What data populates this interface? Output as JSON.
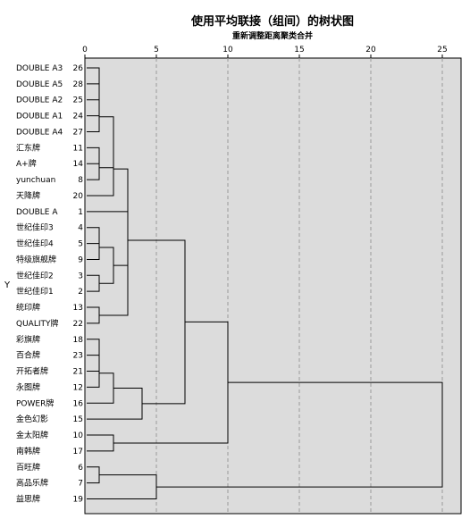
{
  "chart_data": {
    "type": "dendrogram",
    "title": "使用平均联接（组间）的树状图",
    "subtitle": "重新调整距离聚类合并",
    "ylabel": "Y",
    "x_ticks": [
      0,
      5,
      10,
      15,
      20,
      25
    ],
    "xlim": [
      0,
      25
    ],
    "grid": "dashed vertical at ticks",
    "leaves": [
      {
        "label": "DOUBLE A3",
        "id": "26"
      },
      {
        "label": "DOUBLE A5",
        "id": "28"
      },
      {
        "label": "DOUBLE A2",
        "id": "25"
      },
      {
        "label": "DOUBLE A1",
        "id": "24"
      },
      {
        "label": "DOUBLE A4",
        "id": "27"
      },
      {
        "label": "汇东牌",
        "id": "11"
      },
      {
        "label": "A+牌",
        "id": "14"
      },
      {
        "label": "yunchuan",
        "id": "8"
      },
      {
        "label": "天降牌",
        "id": "20"
      },
      {
        "label": "DOUBLE A",
        "id": "1"
      },
      {
        "label": "世纪佳印3",
        "id": "4"
      },
      {
        "label": "世纪佳印4",
        "id": "5"
      },
      {
        "label": "特级旗舰牌",
        "id": "9"
      },
      {
        "label": "世纪佳印2",
        "id": "3"
      },
      {
        "label": "世纪佳印1",
        "id": "2"
      },
      {
        "label": "统印牌",
        "id": "13"
      },
      {
        "label": "QUALITY牌",
        "id": "22"
      },
      {
        "label": "彩旗牌",
        "id": "18"
      },
      {
        "label": "百合牌",
        "id": "23"
      },
      {
        "label": "开拓者牌",
        "id": "21"
      },
      {
        "label": "永图牌",
        "id": "12"
      },
      {
        "label": "POWER牌",
        "id": "16"
      },
      {
        "label": "金色幻影",
        "id": "15"
      },
      {
        "label": "金太阳牌",
        "id": "10"
      },
      {
        "label": "南韩牌",
        "id": "17"
      },
      {
        "label": "百旺牌",
        "id": "6"
      },
      {
        "label": "高品乐牌",
        "id": "7"
      },
      {
        "label": "益思牌",
        "id": "19"
      }
    ],
    "merges": [
      {
        "a": "L0",
        "b": "L1",
        "height": 1.0
      },
      {
        "a": "N0",
        "b": "L2",
        "height": 1.0
      },
      {
        "a": "N1",
        "b": "L3",
        "height": 1.0
      },
      {
        "a": "N2",
        "b": "L4",
        "height": 1.0
      },
      {
        "a": "L5",
        "b": "L6",
        "height": 1.0
      },
      {
        "a": "N4",
        "b": "L7",
        "height": 1.0
      },
      {
        "a": "N3",
        "b": "N5",
        "height": 2.0
      },
      {
        "a": "N6",
        "b": "L8",
        "height": 2.0
      },
      {
        "a": "N7",
        "b": "L9",
        "height": 3.0
      },
      {
        "a": "L10",
        "b": "L11",
        "height": 1.0
      },
      {
        "a": "N9",
        "b": "L12",
        "height": 1.0
      },
      {
        "a": "L13",
        "b": "L14",
        "height": 1.0
      },
      {
        "a": "N10",
        "b": "N11",
        "height": 2.0
      },
      {
        "a": "L15",
        "b": "L16",
        "height": 1.0
      },
      {
        "a": "N12",
        "b": "N13",
        "height": 3.0
      },
      {
        "a": "N8",
        "b": "N14",
        "height": 3.0
      },
      {
        "a": "L17",
        "b": "L18",
        "height": 1.0
      },
      {
        "a": "N16",
        "b": "L19",
        "height": 1.0
      },
      {
        "a": "N17",
        "b": "L20",
        "height": 1.0
      },
      {
        "a": "N18",
        "b": "L21",
        "height": 2.0
      },
      {
        "a": "N19",
        "b": "L22",
        "height": 4.0
      },
      {
        "a": "N15",
        "b": "N20",
        "height": 7.0
      },
      {
        "a": "L23",
        "b": "L24",
        "height": 2.0
      },
      {
        "a": "N21",
        "b": "N22",
        "height": 10.0
      },
      {
        "a": "L25",
        "b": "L26",
        "height": 1.0
      },
      {
        "a": "N24",
        "b": "L27",
        "height": 5.0
      },
      {
        "a": "N23",
        "b": "N25",
        "height": 25.0
      }
    ]
  }
}
